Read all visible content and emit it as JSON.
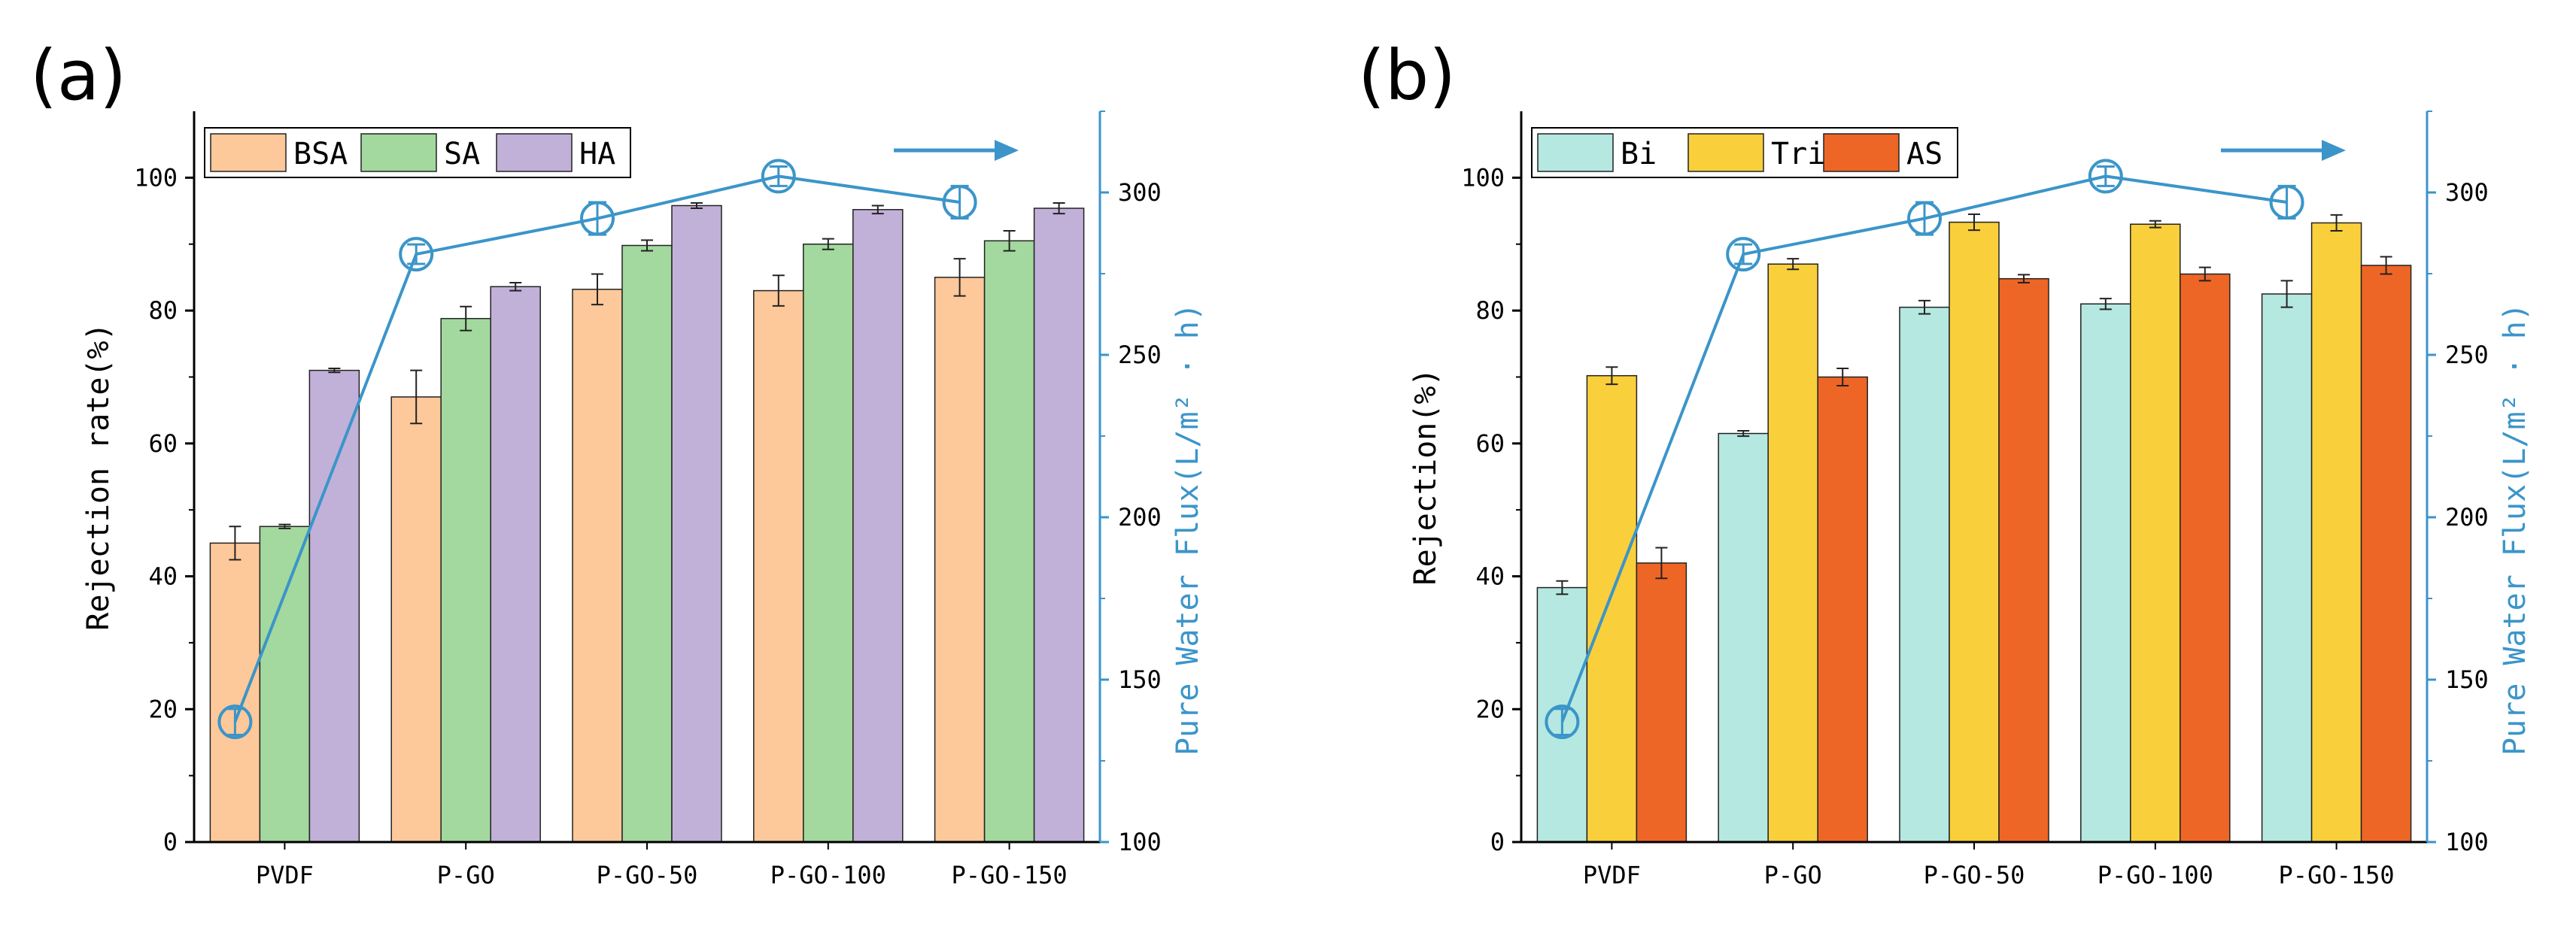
{
  "chart_data": [
    {
      "type": "bar",
      "panel_label": "(a)",
      "categories": [
        "PVDF",
        "P-GO",
        "P-GO-50",
        "P-GO-100",
        "P-GO-150"
      ],
      "ylabel": "Rejection rate(%)",
      "ylim": [
        0,
        110
      ],
      "yticks": [
        "0",
        "20",
        "40",
        "60",
        "80",
        "100"
      ],
      "y2label": "Pure Water Flux(L/m² · h)",
      "y2lim": [
        100,
        325
      ],
      "y2ticks": [
        "100",
        "150",
        "200",
        "250",
        "300"
      ],
      "legend_position": "top-left",
      "series": [
        {
          "name": "BSA",
          "color": "#fdc89a",
          "values": [
            45,
            67,
            83.2,
            83,
            85
          ],
          "errors": [
            2.5,
            4,
            2.3,
            2.3,
            2.8
          ]
        },
        {
          "name": "SA",
          "color": "#a3d99e",
          "values": [
            47.5,
            78.8,
            89.8,
            90,
            90.5
          ],
          "errors": [
            0.3,
            1.8,
            0.8,
            0.8,
            1.5
          ]
        },
        {
          "name": "HA",
          "color": "#c1b1d8",
          "values": [
            71,
            83.6,
            95.8,
            95.2,
            95.4
          ],
          "errors": [
            0.3,
            0.6,
            0.4,
            0.6,
            0.8
          ]
        }
      ],
      "flux_line": {
        "name": "Pure Water Flux",
        "color": "#3b95c9",
        "values": [
          137,
          281,
          292,
          305,
          297
        ],
        "errors": [
          4,
          3,
          5,
          3,
          5
        ]
      },
      "arrow_direction": "right"
    },
    {
      "type": "bar",
      "panel_label": "(b)",
      "categories": [
        "PVDF",
        "P-GO",
        "P-GO-50",
        "P-GO-100",
        "P-GO-150"
      ],
      "ylabel": "Rejection(%)",
      "ylim": [
        0,
        110
      ],
      "yticks": [
        "0",
        "20",
        "40",
        "60",
        "80",
        "100"
      ],
      "y2label": "Pure Water Flux(L/m² · h)",
      "y2lim": [
        100,
        325
      ],
      "y2ticks": [
        "100",
        "150",
        "200",
        "250",
        "300"
      ],
      "legend_position": "top-left",
      "series": [
        {
          "name": "Bi",
          "color": "#b5e8e0",
          "values": [
            38.3,
            61.5,
            80.5,
            81,
            82.5
          ],
          "errors": [
            1,
            0.4,
            1,
            0.8,
            2
          ]
        },
        {
          "name": "Tri",
          "color": "#f9cf3b",
          "values": [
            70.2,
            87,
            93.3,
            93,
            93.2
          ],
          "errors": [
            1.3,
            0.8,
            1.2,
            0.5,
            1.2
          ]
        },
        {
          "name": "AS",
          "color": "#ee6626",
          "values": [
            42,
            70,
            84.8,
            85.5,
            86.8
          ],
          "errors": [
            2.3,
            1.3,
            0.6,
            1,
            1.3
          ]
        }
      ],
      "flux_line": {
        "name": "Pure Water Flux",
        "color": "#3b95c9",
        "values": [
          137,
          281,
          292,
          305,
          297
        ],
        "errors": [
          4,
          3,
          5,
          3,
          5
        ]
      },
      "arrow_direction": "right"
    }
  ]
}
